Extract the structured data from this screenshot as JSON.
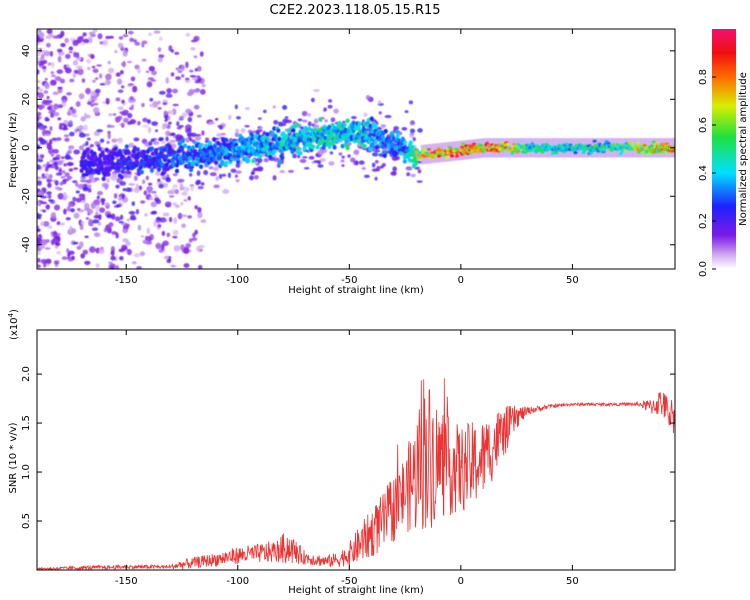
{
  "figure_title": "C2E2.2023.118.05.15.R15",
  "chart_data": [
    {
      "type": "heatmap",
      "title": "C2E2.2023.118.05.15.R15",
      "xlabel": "Height of straight line (km)",
      "ylabel": "Frequency (Hz)",
      "xlim": [
        -190,
        96
      ],
      "ylim": [
        -50,
        49
      ],
      "x_ticks": [
        -150,
        -100,
        -50,
        0,
        50
      ],
      "x_tick_labels": [
        "-150",
        "-100",
        "-50",
        "0",
        "50"
      ],
      "y_ticks": [
        -40,
        -20,
        0,
        20,
        40
      ],
      "y_tick_labels": [
        "-40",
        "-20",
        "0",
        "20",
        "40"
      ],
      "colorbar": {
        "label": "Normalized spectral amplitude",
        "range": [
          0,
          1
        ],
        "ticks": [
          0.0,
          0.2,
          0.4,
          0.6,
          0.8
        ],
        "tick_labels": [
          "0.0",
          "0.2",
          "0.4",
          "0.6",
          "0.8"
        ],
        "colormap": "rainbow (white-violet-blue-cyan-green-yellow-red-pink)"
      },
      "ridge": {
        "description": "Doppler shift ridge of maximum spectral amplitude",
        "x": [
          -160,
          -140,
          -120,
          -100,
          -80,
          -60,
          -45,
          -35,
          -25,
          -20,
          -10,
          0,
          10,
          20,
          30,
          50,
          70,
          85,
          95
        ],
        "freq": [
          -6,
          -5,
          -3,
          -1,
          2,
          5,
          6,
          4,
          0,
          -3,
          -2,
          -1,
          0,
          0,
          0,
          0,
          0,
          0,
          0
        ],
        "amplitude": [
          0.25,
          0.3,
          0.35,
          0.4,
          0.45,
          0.5,
          0.5,
          0.35,
          0.4,
          0.7,
          0.85,
          0.95,
          0.9,
          0.9,
          0.55,
          0.5,
          0.55,
          0.8,
          0.85
        ]
      },
      "colors": {
        "ridge_high": "#e8101a",
        "ridge_mid": "#22d866",
        "ridge_low": "#2a1ae0",
        "noise": "#c49af0"
      }
    },
    {
      "type": "line",
      "xlabel": "Height of straight line (km)",
      "ylabel": "SNR (10 * v/v)",
      "y_scale_label": "(x10",
      "y_scale_exponent": "4",
      "y_scale_close": ")",
      "xlim": [
        -190,
        96
      ],
      "ylim": [
        0,
        2.45
      ],
      "x_ticks": [
        -150,
        -100,
        -50,
        0,
        50
      ],
      "x_tick_labels": [
        "-150",
        "-100",
        "-50",
        "0",
        "50"
      ],
      "y_ticks": [
        0.5,
        1.0,
        1.5,
        2.0
      ],
      "y_tick_labels": [
        "0.5",
        "1.0",
        "1.5",
        "2.0"
      ],
      "series": [
        {
          "name": "SNR",
          "color": "#ee3333",
          "x": [
            -190,
            -170,
            -150,
            -130,
            -125,
            -110,
            -100,
            -90,
            -82,
            -78,
            -70,
            -60,
            -55,
            -50,
            -45,
            -40,
            -35,
            -30,
            -25,
            -20,
            -17,
            -15,
            -10,
            -5,
            0,
            5,
            10,
            15,
            20,
            25,
            30,
            40,
            50,
            60,
            70,
            80,
            85,
            90,
            93,
            96
          ],
          "y": [
            0.01,
            0.02,
            0.03,
            0.03,
            0.05,
            0.1,
            0.14,
            0.16,
            0.18,
            0.22,
            0.12,
            0.08,
            0.1,
            0.15,
            0.25,
            0.35,
            0.45,
            0.6,
            0.75,
            0.9,
            1.2,
            1.1,
            1.05,
            1.0,
            0.98,
            1.02,
            1.1,
            1.25,
            1.4,
            1.55,
            1.62,
            1.67,
            1.69,
            1.69,
            1.69,
            1.69,
            1.66,
            1.7,
            1.6,
            1.55
          ],
          "noise_amp": [
            0.01,
            0.02,
            0.02,
            0.02,
            0.05,
            0.07,
            0.09,
            0.1,
            0.12,
            0.18,
            0.07,
            0.06,
            0.08,
            0.12,
            0.2,
            0.25,
            0.3,
            0.35,
            0.4,
            0.6,
            0.9,
            0.8,
            0.6,
            0.5,
            0.45,
            0.45,
            0.4,
            0.35,
            0.25,
            0.12,
            0.04,
            0.02,
            0.015,
            0.015,
            0.015,
            0.02,
            0.08,
            0.15,
            0.15,
            0.2
          ]
        }
      ]
    }
  ]
}
